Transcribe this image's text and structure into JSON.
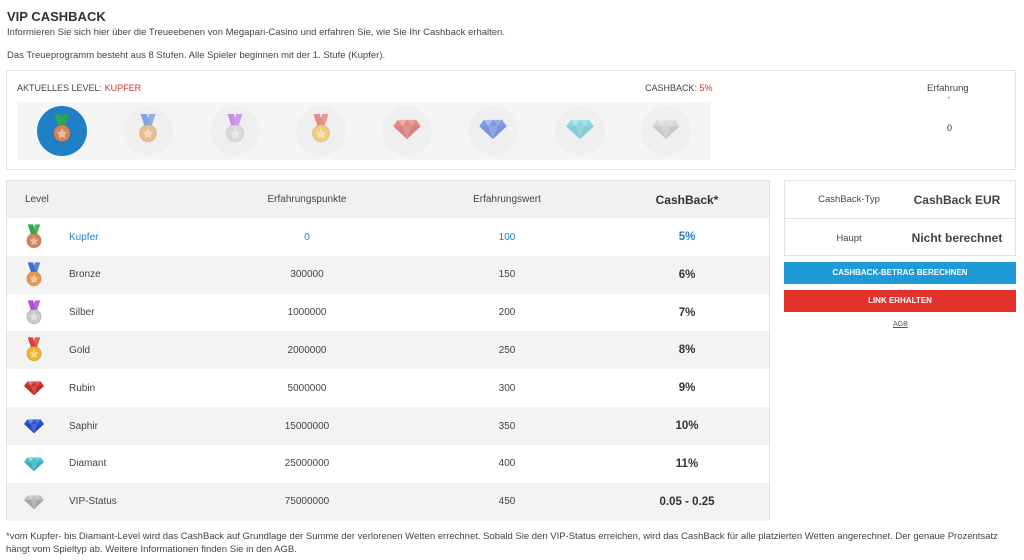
{
  "header": {
    "title": "VIP CASHBACK",
    "intro": "Informieren Sie sich hier über die Treueebenen von Megapari-Casino und erfahren Sie, wie Sie Ihr Cashback erhalten.",
    "stages_note": "Das Treueprogramm besteht aus 8 Stufen. Alle Spieler beginnen mit der 1. Stufe (Kupfer)."
  },
  "current": {
    "level_label": "AKTUELLES LEVEL:",
    "level_value": "KUPFER",
    "cashback_label": "CASHBACK:",
    "cashback_value": "5%",
    "experience_label": "Erfahrung",
    "experience_dot": "•",
    "experience_value": "0",
    "medals": [
      {
        "name": "Kupfer",
        "kind": "medal",
        "ribbon": "#2fa84f",
        "disc": "#d4825a",
        "active": true
      },
      {
        "name": "Bronze",
        "kind": "medal",
        "ribbon": "#3b6fd1",
        "disc": "#e39a4c",
        "active": false
      },
      {
        "name": "Silber",
        "kind": "medal",
        "ribbon": "#b04ad9",
        "disc": "#c9c9c9",
        "active": false
      },
      {
        "name": "Gold",
        "kind": "medal",
        "ribbon": "#e2403a",
        "disc": "#f0b429",
        "active": false
      },
      {
        "name": "Rubin",
        "kind": "gem",
        "color": "#e0403a",
        "active": false
      },
      {
        "name": "Saphir",
        "kind": "gem",
        "color": "#2f5fe0",
        "active": false
      },
      {
        "name": "Diamant",
        "kind": "gem",
        "color": "#3fc9d4",
        "active": false
      },
      {
        "name": "VIP-Status",
        "kind": "gem",
        "color": "#c8c8c8",
        "active": false
      }
    ]
  },
  "table": {
    "headers": {
      "level": "Level",
      "points": "Erfahrungspunkte",
      "value": "Erfahrungswert",
      "cashback": "CashBack*"
    },
    "rows": [
      {
        "level": "Kupfer",
        "points": "0",
        "value": "100",
        "cashback": "5%",
        "icon": "medal",
        "ribbon": "#2fa84f",
        "disc": "#d4825a",
        "current": true
      },
      {
        "level": "Bronze",
        "points": "300000",
        "value": "150",
        "cashback": "6%",
        "icon": "medal",
        "ribbon": "#3b6fd1",
        "disc": "#e39a4c",
        "current": false
      },
      {
        "level": "Silber",
        "points": "1000000",
        "value": "200",
        "cashback": "7%",
        "icon": "medal",
        "ribbon": "#b04ad9",
        "disc": "#c9c9c9",
        "current": false
      },
      {
        "level": "Gold",
        "points": "2000000",
        "value": "250",
        "cashback": "8%",
        "icon": "medal",
        "ribbon": "#e2403a",
        "disc": "#f0b429",
        "current": false
      },
      {
        "level": "Rubin",
        "points": "5000000",
        "value": "300",
        "cashback": "9%",
        "icon": "gem",
        "color": "#d8312b",
        "current": false
      },
      {
        "level": "Saphir",
        "points": "15000000",
        "value": "350",
        "cashback": "10%",
        "icon": "gem",
        "color": "#2456db",
        "current": false
      },
      {
        "level": "Diamant",
        "points": "25000000",
        "value": "400",
        "cashback": "11%",
        "icon": "gem",
        "color": "#41c6d3",
        "current": false
      },
      {
        "level": "VIP-Status",
        "points": "75000000",
        "value": "450",
        "cashback": "0.05 - 0.25",
        "icon": "gem",
        "color": "#bdbdbd",
        "current": false
      }
    ]
  },
  "side": {
    "type_label": "CashBack-Typ",
    "type_value": "CashBack EUR",
    "main_label": "Haupt",
    "main_value": "Nicht berechnet",
    "calc_button": "CASHBACK-BETRAG BERECHNEN",
    "link_button": "LINK ERHALTEN",
    "agb_link": "AGB"
  },
  "footnote": "*vom Kupfer- bis Diamant-Level wird das CashBack auf Grundlage der Summe der verlorenen Wetten errechnet. Sobald Sie den VIP-Status erreichen, wird das CashBack für alle platzierten Wetten angerechnet. Der genaue Prozentsatz hängt vom Spieltyp ab. Weitere Informationen finden Sie in den AGB."
}
